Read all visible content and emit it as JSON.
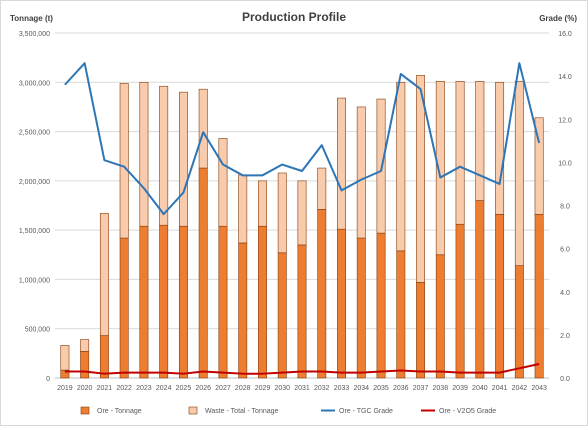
{
  "chart_data": {
    "type": "bar+line",
    "title": "Production Profile",
    "ylabel_left": "Tonnage (t)",
    "ylabel_right": "Grade (%)",
    "ylim_left": [
      0,
      3500000
    ],
    "ylim_right": [
      0,
      16
    ],
    "yticks_left": [
      "0",
      "500,000",
      "1,000,000",
      "1,500,000",
      "2,000,000",
      "2,500,000",
      "3,000,000",
      "3,500,000"
    ],
    "yticks_right": [
      "0.0",
      "2.0",
      "4.0",
      "6.0",
      "8.0",
      "10.0",
      "12.0",
      "14.0",
      "16.0"
    ],
    "gridlines": true,
    "legend_position": "bottom",
    "categories": [
      "2019",
      "2020",
      "2021",
      "2022",
      "2023",
      "2024",
      "2025",
      "2026",
      "2027",
      "2028",
      "2029",
      "2030",
      "2031",
      "2032",
      "2033",
      "2034",
      "2035",
      "2036",
      "2037",
      "2038",
      "2039",
      "2040",
      "2041",
      "2042",
      "2043"
    ],
    "series": [
      {
        "name": "Ore - Tonnage",
        "kind": "stacked-bar",
        "axis": "left",
        "color": "#ed7d31",
        "values": [
          80000,
          270000,
          430000,
          1420000,
          1540000,
          1550000,
          1540000,
          2130000,
          1540000,
          1370000,
          1540000,
          1270000,
          1350000,
          1710000,
          1510000,
          1420000,
          1470000,
          1290000,
          970000,
          1250000,
          1560000,
          1800000,
          1660000,
          1140000,
          1660000
        ]
      },
      {
        "name": "Waste - Total - Tonnage",
        "kind": "stacked-bar",
        "axis": "left",
        "color": "#f8cbad",
        "values": [
          250000,
          120000,
          1240000,
          1570000,
          1460000,
          1410000,
          1360000,
          800000,
          890000,
          690000,
          460000,
          810000,
          650000,
          420000,
          1330000,
          1330000,
          1360000,
          1710000,
          2100000,
          1760000,
          1450000,
          1210000,
          1340000,
          1870000,
          980000
        ]
      },
      {
        "name": "Ore - TGC Grade",
        "kind": "line",
        "axis": "right",
        "color": "#2e75b6",
        "values": [
          13.6,
          14.6,
          10.1,
          9.8,
          8.8,
          7.6,
          8.6,
          11.4,
          9.9,
          9.4,
          9.4,
          9.9,
          9.6,
          10.8,
          8.7,
          9.2,
          9.6,
          14.1,
          13.4,
          9.3,
          9.8,
          9.4,
          9.0,
          14.6,
          10.9
        ]
      },
      {
        "name": "Ore - V2O5 Grade",
        "kind": "line",
        "axis": "right",
        "color": "#c00000",
        "values": [
          0.3,
          0.3,
          0.2,
          0.25,
          0.25,
          0.25,
          0.2,
          0.3,
          0.25,
          0.2,
          0.2,
          0.25,
          0.3,
          0.3,
          0.25,
          0.25,
          0.3,
          0.35,
          0.3,
          0.3,
          0.25,
          0.25,
          0.25,
          0.45,
          0.65
        ]
      }
    ]
  }
}
